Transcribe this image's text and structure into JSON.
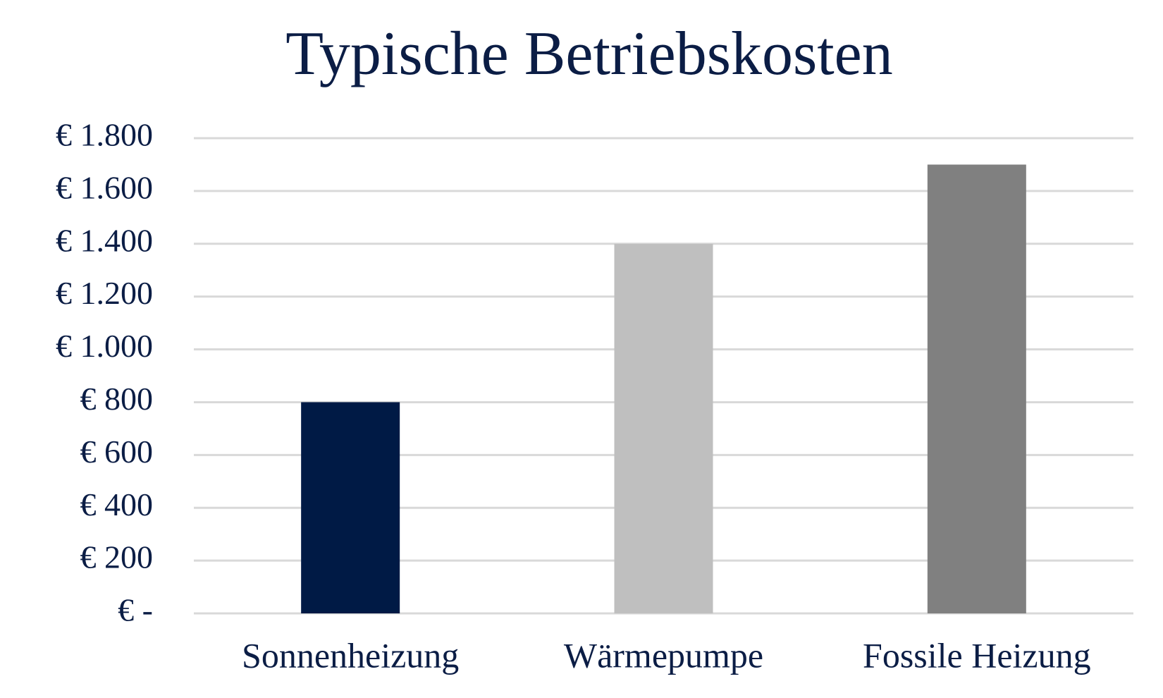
{
  "chart_data": {
    "type": "bar",
    "title": "Typische Betriebskosten",
    "categories": [
      "Sonnenheizung",
      "Wärmepumpe",
      "Fossile Heizung"
    ],
    "values": [
      800,
      1400,
      1700
    ],
    "colors": [
      "#001a45",
      "#bfbfbf",
      "#808080"
    ],
    "ylim": [
      0,
      1800
    ],
    "yticks": [
      {
        "value": 0,
        "label": "€ -"
      },
      {
        "value": 200,
        "label": "€ 200"
      },
      {
        "value": 400,
        "label": "€ 400"
      },
      {
        "value": 600,
        "label": "€ 600"
      },
      {
        "value": 800,
        "label": "€ 800"
      },
      {
        "value": 1000,
        "label": "€ 1.000"
      },
      {
        "value": 1200,
        "label": "€ 1.200"
      },
      {
        "value": 1400,
        "label": "€ 1.400"
      },
      {
        "value": 1600,
        "label": "€ 1.600"
      },
      {
        "value": 1800,
        "label": "€ 1.800"
      }
    ],
    "grid": true
  }
}
